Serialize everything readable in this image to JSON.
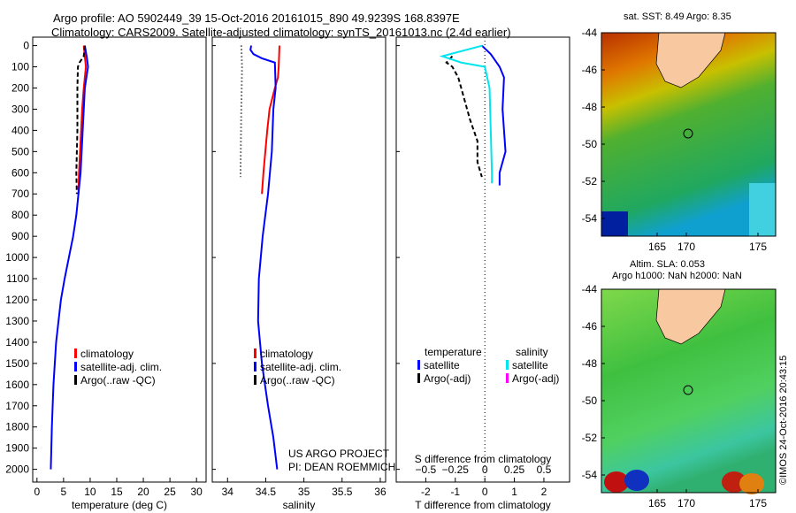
{
  "title": {
    "line1": "Argo profile: AO 5902449_39 15-Oct-2016 20161015_890 49.9239S 168.8397E",
    "line2": "Climatology: CARS2009. Satellite-adjusted climatology: synTS_20161013.nc (2.4d earlier)"
  },
  "colors": {
    "climatology": "#ff0000",
    "satellite": "#0000ff",
    "argo": "#000000",
    "sal_satellite": "#00e5ee",
    "sal_argo": "#ff00ff"
  },
  "chart_data": [
    {
      "type": "line",
      "xlabel": "temperature (deg C)",
      "xlim": [
        -0.8,
        31.8
      ],
      "ylim": [
        -40,
        2060
      ],
      "xticks": [
        0,
        5,
        10,
        15,
        20,
        25,
        30
      ],
      "yticks": [
        0,
        100,
        200,
        300,
        400,
        500,
        600,
        700,
        800,
        900,
        1000,
        1100,
        1200,
        1300,
        1400,
        1500,
        1600,
        1700,
        1800,
        1900,
        2000
      ],
      "legend": [
        "climatology",
        "satellite-adj. clim.",
        "Argo(..raw -QC)"
      ],
      "series": [
        {
          "name": "climatology",
          "color": "#ff0000",
          "dash": "",
          "depth": [
            0,
            50,
            100,
            200,
            300,
            400,
            500,
            600,
            700
          ],
          "values": [
            8.8,
            9.0,
            9.2,
            8.8,
            8.5,
            8.3,
            8.1,
            7.9,
            7.8
          ]
        },
        {
          "name": "satellite-adj. clim.",
          "color": "#0000ff",
          "dash": "",
          "depth": [
            0,
            60,
            100,
            200,
            300,
            400,
            600,
            800,
            900,
            1000,
            1100,
            1200,
            1400,
            1600,
            1800,
            2000
          ],
          "values": [
            9.0,
            9.4,
            9.6,
            9.0,
            8.8,
            8.6,
            8.2,
            7.4,
            6.8,
            6.0,
            5.2,
            4.5,
            3.6,
            3.1,
            2.8,
            2.6
          ]
        },
        {
          "name": "Argo(..raw -QC)",
          "color": "#000000",
          "dash": "5,3",
          "depth": [
            0,
            50,
            80,
            100,
            200,
            400,
            600,
            700
          ],
          "values": [
            9.0,
            8.8,
            8.0,
            7.7,
            7.6,
            7.6,
            7.4,
            7.5
          ]
        }
      ]
    },
    {
      "type": "line",
      "xlabel": "salinity",
      "xlim": [
        33.8,
        36.07
      ],
      "ylim": [
        -40,
        2060
      ],
      "xticks": [
        34,
        34.5,
        35,
        35.5,
        36
      ],
      "legend": [
        "climatology",
        "satellite-adj. clim.",
        "Argo(..raw -QC)"
      ],
      "annotation": [
        "US ARGO PROJECT",
        "PI: DEAN ROEMMICH"
      ],
      "series": [
        {
          "name": "climatology",
          "color": "#ff0000",
          "dash": "",
          "depth": [
            0,
            100,
            150,
            200,
            300,
            400,
            600,
            700
          ],
          "values": [
            34.68,
            34.67,
            34.66,
            34.62,
            34.55,
            34.52,
            34.47,
            34.45
          ]
        },
        {
          "name": "satellite-adj. clim.",
          "color": "#0000ff",
          "dash": "",
          "depth": [
            0,
            20,
            40,
            60,
            80,
            200,
            300,
            500,
            700,
            900,
            1100,
            1300,
            1500,
            1700,
            1850,
            2000
          ],
          "values": [
            34.31,
            34.3,
            34.34,
            34.45,
            34.62,
            34.63,
            34.6,
            34.58,
            34.53,
            34.46,
            34.41,
            34.4,
            34.45,
            34.53,
            34.6,
            34.65
          ]
        },
        {
          "name": "Argo(..raw -QC)",
          "color": "#000000",
          "dash": "1,3",
          "depth": [
            0,
            100,
            300,
            600,
            620
          ],
          "values": [
            34.18,
            34.19,
            34.18,
            34.17,
            34.17
          ]
        }
      ]
    },
    {
      "type": "line",
      "xlabel": "T difference from climatology",
      "x2label": "S difference from climatology",
      "xlim": [
        -3,
        2.87
      ],
      "ylim": [
        -40,
        2060
      ],
      "xticks": [
        -2,
        -1,
        0,
        1,
        2
      ],
      "x2ticks": [
        -0.5,
        -0.25,
        0,
        0.25,
        0.5
      ],
      "legend": {
        "temperature": "temperature",
        "salinity": "salinity",
        "items": [
          "satellite",
          "Argo(-adj)",
          "satellite",
          "Argo(-adj)"
        ]
      },
      "series": [
        {
          "name": "temperature satellite",
          "color": "#0000ff",
          "dash": "",
          "scale": 1,
          "depth": [
            0,
            40,
            70,
            100,
            150,
            300,
            400,
            500,
            600,
            660
          ],
          "values": [
            -0.1,
            0.2,
            0.35,
            0.5,
            0.65,
            0.6,
            0.65,
            0.7,
            0.5,
            0.5
          ]
        },
        {
          "name": "temperature Argo(-adj)",
          "color": "#000000",
          "dash": "5,3",
          "scale": 1,
          "depth": [
            50,
            80,
            100,
            150,
            250,
            350,
            450,
            550,
            620
          ],
          "values": [
            -1.1,
            -1.3,
            -1.1,
            -0.9,
            -0.7,
            -0.5,
            -0.25,
            -0.25,
            -0.1
          ]
        },
        {
          "name": "salinity satellite",
          "color": "#00e5ee",
          "dash": "",
          "scale": 4,
          "depth": [
            0,
            50,
            80,
            100,
            200,
            400,
            600,
            650
          ],
          "values": [
            -0.02,
            -0.36,
            -0.2,
            0.0,
            0.04,
            0.05,
            0.06,
            0.06
          ]
        }
      ]
    }
  ],
  "maps": [
    {
      "title": "sat. SST: 8.49 Argo: 8.35",
      "yticks": [
        "-44",
        "-46",
        "-48",
        "-50",
        "-52",
        "-54"
      ],
      "xticks": [
        "165",
        "170",
        "175"
      ]
    },
    {
      "title1": "Altim. SLA: 0.053",
      "title2": "Argo h1000: NaN h2000: NaN",
      "yticks": [
        "-44",
        "-46",
        "-48",
        "-50",
        "-52",
        "-54"
      ],
      "xticks": [
        "165",
        "170",
        "175"
      ]
    }
  ],
  "credit": "©IMOS 24-Oct-2016 20:43:15"
}
